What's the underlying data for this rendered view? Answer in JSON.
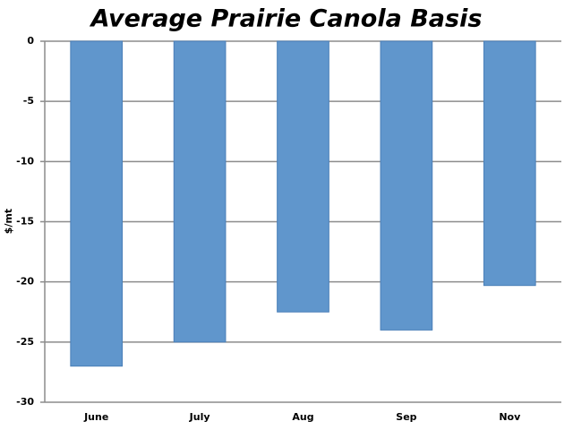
{
  "chart_data": {
    "type": "bar",
    "title": "Average Prairie Canola Basis",
    "y_label": "$/mt",
    "categories": [
      "June",
      "July",
      "Aug",
      "Sep",
      "Nov"
    ],
    "values": [
      -27,
      -25,
      -22.5,
      -24,
      -20.3
    ],
    "color": "#6096cc",
    "ylim": [
      -30,
      0
    ],
    "yticks": [
      0,
      -5,
      -10,
      -15,
      -20,
      -25,
      -30
    ],
    "grid": true
  }
}
